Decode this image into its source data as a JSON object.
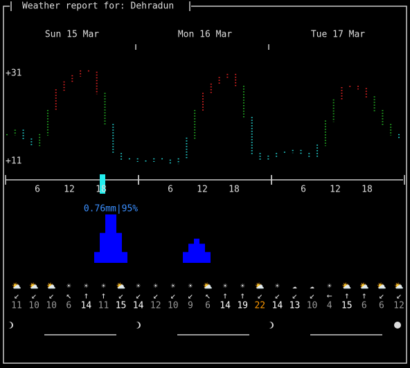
{
  "header": {
    "title": "Weather report for: Dehradun"
  },
  "days": [
    "Sun 15 Mar",
    "Mon 16 Mar",
    "Tue 17 Mar"
  ],
  "temperature": {
    "ylabels": [
      {
        "value": 31,
        "label": "+31"
      },
      {
        "value": 11,
        "label": "+11"
      }
    ],
    "ylim": [
      11,
      31
    ],
    "values": [
      17,
      18,
      16,
      14.6,
      17,
      22.5,
      27.2,
      29,
      30.4,
      31.5,
      31.2,
      26.4,
      19.3,
      12.7,
      11.5,
      11.5,
      11,
      11,
      11.5,
      11.2,
      10.5,
      11.5,
      16.2,
      22.5,
      26.4,
      28.5,
      30,
      30.7,
      28,
      20.9,
      12.7,
      11.5,
      12.1,
      12.7,
      13,
      13.4,
      12.7,
      11.8,
      14.6,
      20.1,
      24.9,
      27.7,
      28,
      27.5,
      25.6,
      22.5,
      19.3,
      17,
      16.2
    ],
    "colors": {
      "low": "#22cccc",
      "mid": "#22aa22",
      "high": "#dd2222"
    }
  },
  "hours": [
    "6",
    "12",
    "18"
  ],
  "precipitation": {
    "label": "0.76mm|95%",
    "color": "#0000ff",
    "label_color": "#3b8fff",
    "values": [
      0,
      0,
      0,
      0,
      0,
      0,
      0,
      0,
      0,
      0,
      0,
      0,
      0,
      0,
      0,
      0,
      0.17,
      0.47,
      0.76,
      0.76,
      0.47,
      0.17,
      0,
      0,
      0,
      0,
      0,
      0,
      0,
      0,
      0,
      0,
      0.17,
      0.3,
      0.38,
      0.3,
      0.17,
      0,
      0,
      0,
      0,
      0,
      0,
      0,
      0,
      0,
      0,
      0,
      0,
      0,
      0,
      0,
      0,
      0,
      0,
      0,
      0,
      0,
      0,
      0,
      0,
      0,
      0,
      0,
      0,
      0,
      0,
      0,
      0,
      0,
      0,
      0
    ]
  },
  "forecast": [
    {
      "icon": "⛅",
      "arrow": "↙",
      "speed": "11",
      "color": "#999"
    },
    {
      "icon": "⛅",
      "arrow": "↙",
      "speed": "10",
      "color": "#999"
    },
    {
      "icon": "⛅",
      "arrow": "↙",
      "speed": "10",
      "color": "#999"
    },
    {
      "icon": "☀",
      "arrow": "↖",
      "speed": "6",
      "color": "#999"
    },
    {
      "icon": "☀",
      "arrow": "↑",
      "speed": "14",
      "color": "#fff"
    },
    {
      "icon": "☀",
      "arrow": "↑",
      "speed": "11",
      "color": "#999"
    },
    {
      "icon": "⛅",
      "arrow": "↙",
      "speed": "15",
      "color": "#fff"
    },
    {
      "icon": "☀",
      "arrow": "↙",
      "speed": "14",
      "color": "#fff"
    },
    {
      "icon": "☀",
      "arrow": "↙",
      "speed": "12",
      "color": "#999"
    },
    {
      "icon": "☀",
      "arrow": "↙",
      "speed": "10",
      "color": "#999"
    },
    {
      "icon": "☀",
      "arrow": "↙",
      "speed": "9",
      "color": "#999"
    },
    {
      "icon": "⛅",
      "arrow": "↖",
      "speed": "6",
      "color": "#999"
    },
    {
      "icon": "☀",
      "arrow": "↑",
      "speed": "14",
      "color": "#fff"
    },
    {
      "icon": "☀",
      "arrow": "↑",
      "speed": "19",
      "color": "#fff"
    },
    {
      "icon": "⛅",
      "arrow": "↙",
      "speed": "22",
      "color": "#ff9900"
    },
    {
      "icon": "☀",
      "arrow": "↙",
      "speed": "14",
      "color": "#fff"
    },
    {
      "icon": "☁",
      "arrow": "↙",
      "speed": "13",
      "color": "#fff"
    },
    {
      "icon": "☁",
      "arrow": "↙",
      "speed": "10",
      "color": "#999"
    },
    {
      "icon": "☀",
      "arrow": "←",
      "speed": "4",
      "color": "#999"
    },
    {
      "icon": "⛅",
      "arrow": "↑",
      "speed": "15",
      "color": "#fff"
    },
    {
      "icon": "⛅",
      "arrow": "↑",
      "speed": "6",
      "color": "#999"
    },
    {
      "icon": "⛅",
      "arrow": "↙",
      "speed": "6",
      "color": "#999"
    },
    {
      "icon": "⛅",
      "arrow": "↙",
      "speed": "12",
      "color": "#999"
    }
  ]
}
